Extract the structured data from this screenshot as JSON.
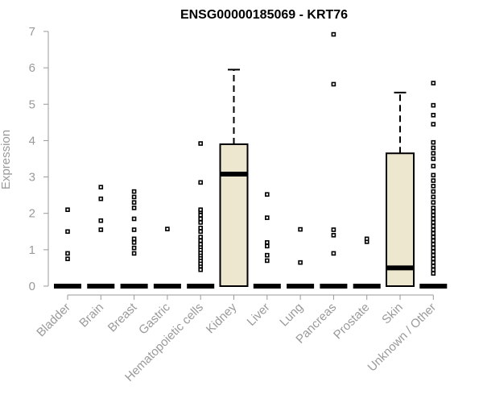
{
  "chart_data": {
    "type": "box",
    "title": "ENSG00000185069 - KRT76",
    "xlabel": "",
    "ylabel": "Expression",
    "ylim": [
      0,
      7
    ],
    "yticks": [
      "0",
      "1",
      "2",
      "3",
      "4",
      "5",
      "6",
      "7"
    ],
    "grid": false,
    "box_fill": "#ede7cf",
    "categories": [
      "Bladder",
      "Brain",
      "Breast",
      "Gastric",
      "Hematopoietic cells",
      "Kidney",
      "Liver",
      "Lung",
      "Pancreas",
      "Prostate",
      "Skin",
      "Unknown / Other"
    ],
    "boxes": [
      {
        "q1": 0,
        "median": 0,
        "q3": 0,
        "whisker_low": 0,
        "whisker_high": 0,
        "outliers": [
          0.75,
          0.9,
          1.5,
          2.1
        ]
      },
      {
        "q1": 0,
        "median": 0,
        "q3": 0,
        "whisker_low": 0,
        "whisker_high": 0,
        "outliers": [
          1.55,
          1.8,
          2.4,
          2.72
        ]
      },
      {
        "q1": 0,
        "median": 0,
        "q3": 0,
        "whisker_low": 0,
        "whisker_high": 0,
        "outliers": [
          0.9,
          1.05,
          1.2,
          1.3,
          1.55,
          1.85,
          2.15,
          2.3,
          2.45,
          2.6
        ]
      },
      {
        "q1": 0,
        "median": 0,
        "q3": 0,
        "whisker_low": 0,
        "whisker_high": 0,
        "outliers": [
          1.57
        ]
      },
      {
        "q1": 0,
        "median": 0,
        "q3": 0,
        "whisker_low": 0,
        "whisker_high": 0,
        "outliers": [
          0.45,
          0.55,
          0.62,
          0.7,
          0.78,
          0.85,
          0.92,
          1.0,
          1.08,
          1.15,
          1.25,
          1.35,
          1.5,
          1.6,
          1.75,
          1.85,
          1.95,
          2.05,
          2.1,
          2.85,
          3.92
        ]
      },
      {
        "q1": 0,
        "median": 3.08,
        "q3": 3.9,
        "whisker_low": 0,
        "whisker_high": 5.95,
        "outliers": []
      },
      {
        "q1": 0,
        "median": 0,
        "q3": 0,
        "whisker_low": 0,
        "whisker_high": 0,
        "outliers": [
          0.7,
          0.85,
          1.1,
          1.2,
          1.88,
          2.52
        ]
      },
      {
        "q1": 0,
        "median": 0,
        "q3": 0,
        "whisker_low": 0,
        "whisker_high": 0,
        "outliers": [
          0.65,
          1.56
        ]
      },
      {
        "q1": 0,
        "median": 0,
        "q3": 0,
        "whisker_low": 0,
        "whisker_high": 0,
        "outliers": [
          0.9,
          1.4,
          1.55,
          5.55,
          6.92
        ]
      },
      {
        "q1": 0,
        "median": 0,
        "q3": 0,
        "whisker_low": 0,
        "whisker_high": 0,
        "outliers": [
          1.22,
          1.3
        ]
      },
      {
        "q1": 0,
        "median": 0.5,
        "q3": 3.65,
        "whisker_low": 0,
        "whisker_high": 5.32,
        "outliers": []
      },
      {
        "q1": 0,
        "median": 0,
        "q3": 0,
        "whisker_low": 0,
        "whisker_high": 0,
        "outliers": [
          0.35,
          0.45,
          0.55,
          0.65,
          0.75,
          0.85,
          0.95,
          1.05,
          1.15,
          1.25,
          1.35,
          1.45,
          1.55,
          1.65,
          1.75,
          1.85,
          1.95,
          2.05,
          2.15,
          2.3,
          2.45,
          2.6,
          2.75,
          2.9,
          3.05,
          3.3,
          3.5,
          3.65,
          3.8,
          3.95,
          4.45,
          4.7,
          4.97,
          5.58
        ]
      }
    ]
  }
}
